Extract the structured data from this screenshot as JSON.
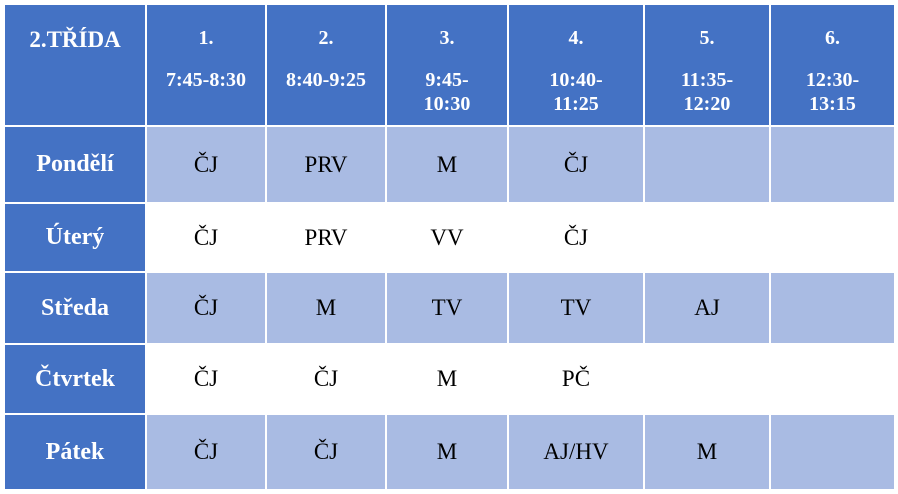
{
  "table": {
    "corner": "2.TŘÍDA",
    "periods": [
      {
        "number": "1.",
        "time": "7:45-8:30"
      },
      {
        "number": "2.",
        "time": "8:40-9:25"
      },
      {
        "number": "3.",
        "time": "9:45-10:30"
      },
      {
        "number": "4.",
        "time": "10:40-11:25"
      },
      {
        "number": "5.",
        "time": "11:35-12:20"
      },
      {
        "number": "6.",
        "time": "12:30-13:15"
      }
    ],
    "rows": [
      {
        "day": "Pondělí",
        "lessons": [
          "ČJ",
          "PRV",
          "M",
          "ČJ"
        ]
      },
      {
        "day": "Úterý",
        "lessons": [
          "ČJ",
          "PRV",
          "VV",
          "ČJ"
        ]
      },
      {
        "day": "Středa",
        "lessons": [
          "ČJ",
          "M",
          "TV",
          "TV",
          "AJ"
        ]
      },
      {
        "day": "Čtvrtek",
        "lessons": [
          "ČJ",
          "ČJ",
          "M",
          "PČ"
        ]
      },
      {
        "day": "Pátek",
        "lessons": [
          "ČJ",
          "ČJ",
          "M",
          "AJ/HV",
          "M"
        ]
      }
    ]
  }
}
